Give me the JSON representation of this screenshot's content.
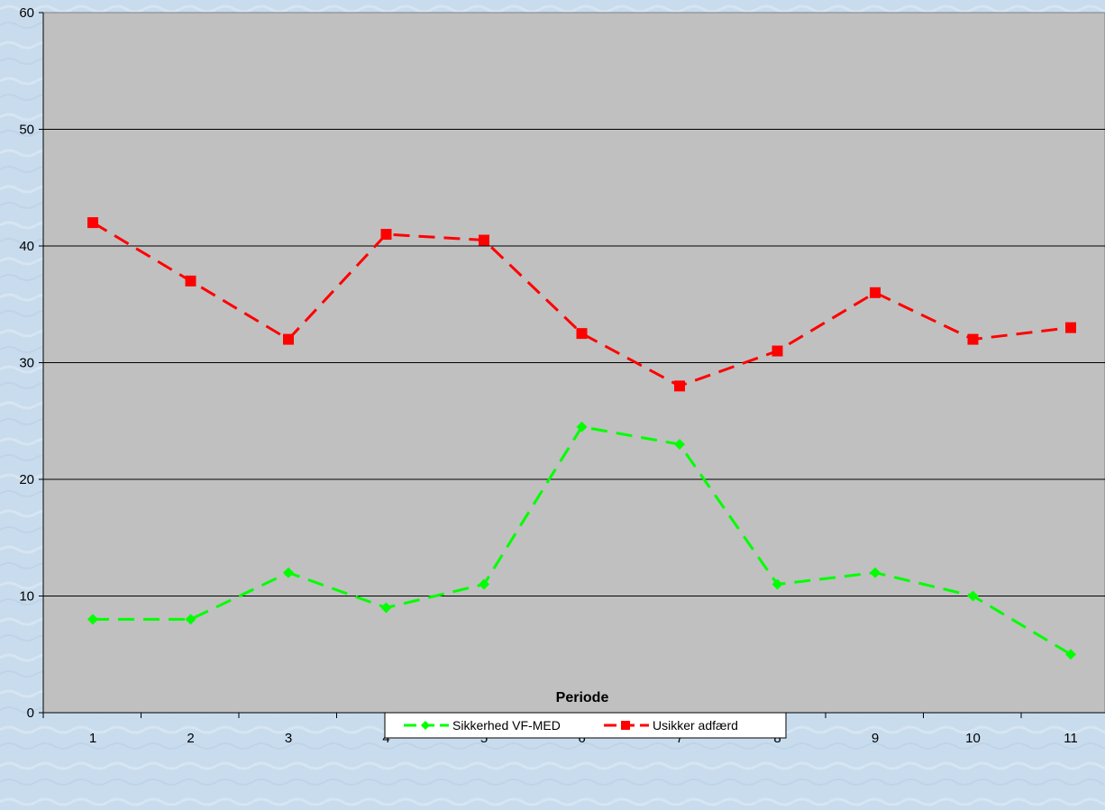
{
  "chart_data": {
    "type": "line",
    "categories": [
      "1",
      "2",
      "3",
      "4",
      "5",
      "6",
      "7",
      "8",
      "9",
      "10",
      "11"
    ],
    "series": [
      {
        "name": "Sikkerhed VF-MED",
        "values": [
          8,
          8,
          12,
          9,
          11,
          24.5,
          23,
          11,
          12,
          10,
          5
        ],
        "color": "#00ff00",
        "marker": "diamond",
        "line_style": "dashed"
      },
      {
        "name": "Usikker adfærd",
        "values": [
          42,
          37,
          32,
          41,
          40.5,
          32.5,
          28,
          31,
          36,
          32,
          33
        ],
        "color": "#ff0000",
        "marker": "square",
        "line_style": "dashed"
      }
    ],
    "xlabel": "Periode",
    "ylabel": "",
    "ylim": [
      0,
      60
    ],
    "yticks": [
      0,
      10,
      20,
      30,
      40,
      50,
      60
    ],
    "grid": true,
    "plot_background": "#c0c0c0",
    "page_background": "#c8dcee",
    "legend_position": "bottom"
  }
}
